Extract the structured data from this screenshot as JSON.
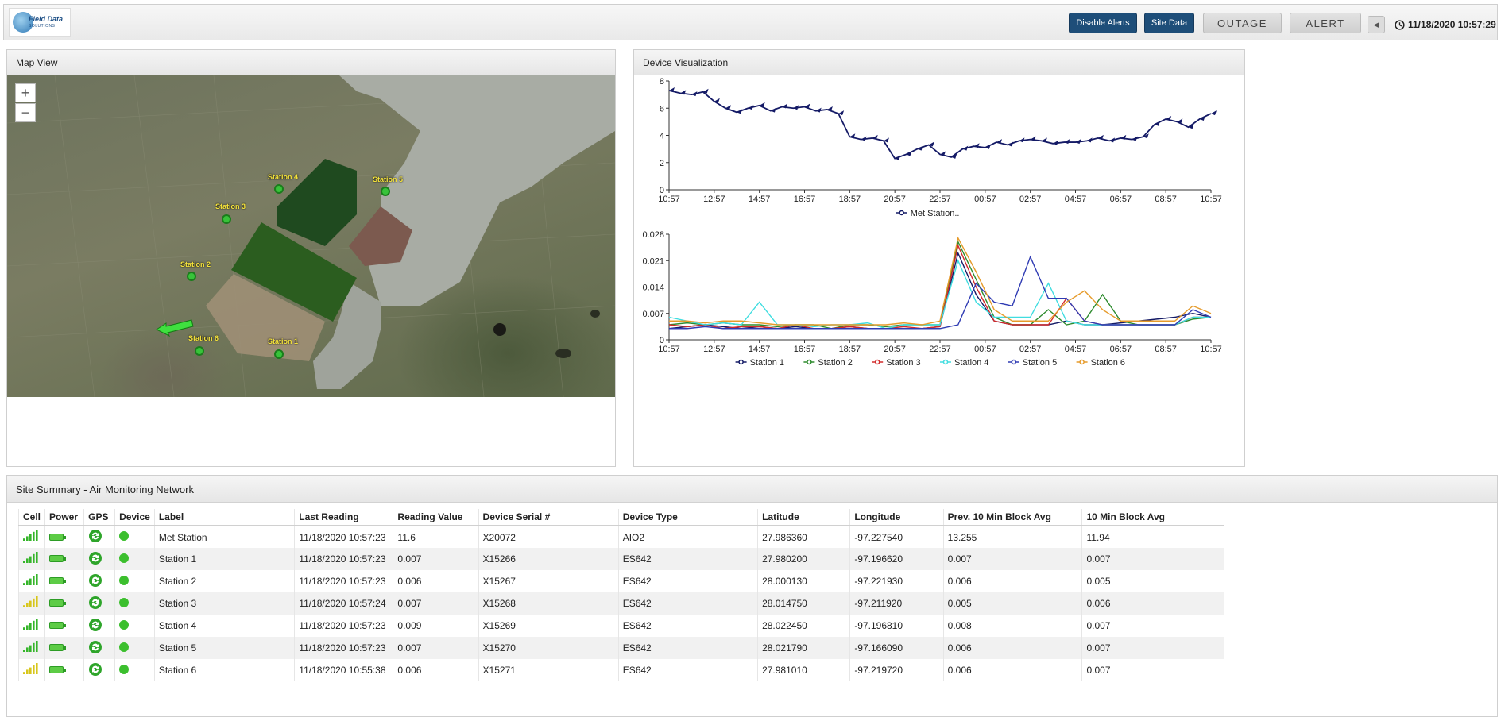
{
  "header": {
    "logo_text": "Field Data",
    "logo_sub": "SOLUTIONS",
    "disable_alerts": "Disable Alerts",
    "site_data": "Site Data",
    "outage": "OUTAGE",
    "alert": "ALERT",
    "timestamp": "11/18/2020 10:57:29"
  },
  "map_panel": {
    "title": "Map View",
    "zoom_in": "+",
    "zoom_out": "−",
    "stations": [
      {
        "label": "Station 4"
      },
      {
        "label": "Station 5"
      },
      {
        "label": "Station 3"
      },
      {
        "label": "Station 2"
      },
      {
        "label": "Station 6"
      },
      {
        "label": "Station 1"
      }
    ]
  },
  "viz_panel": {
    "title": "Device Visualization"
  },
  "chart_data": [
    {
      "type": "line",
      "title": "",
      "xlabel": "",
      "ylabel": "",
      "ylim": [
        0,
        8
      ],
      "yticks": [
        "0",
        "2",
        "4",
        "6",
        "8"
      ],
      "xticks": [
        "10:57",
        "12:57",
        "14:57",
        "16:57",
        "18:57",
        "20:57",
        "22:57",
        "00:57",
        "02:57",
        "04:57",
        "06:57",
        "08:57",
        "10:57"
      ],
      "legend": [
        "Met Station.."
      ],
      "series": [
        {
          "name": "Met Station..",
          "color": "#141a66",
          "values": [
            7.3,
            7.1,
            7.0,
            7.2,
            6.5,
            6.0,
            5.7,
            6.0,
            6.2,
            5.8,
            6.1,
            6.0,
            6.1,
            5.8,
            5.9,
            5.6,
            3.9,
            3.7,
            3.8,
            3.6,
            2.3,
            2.6,
            3.0,
            3.3,
            2.6,
            2.4,
            3.0,
            3.2,
            3.1,
            3.5,
            3.3,
            3.6,
            3.7,
            3.6,
            3.4,
            3.5,
            3.5,
            3.6,
            3.8,
            3.6,
            3.8,
            3.7,
            3.9,
            4.8,
            5.2,
            5.0,
            4.6,
            5.2,
            5.6
          ]
        }
      ]
    },
    {
      "type": "line",
      "title": "",
      "xlabel": "",
      "ylabel": "",
      "ylim": [
        0,
        0.028
      ],
      "yticks": [
        "0",
        "0.007",
        "0.014",
        "0.021",
        "0.028"
      ],
      "xticks": [
        "10:57",
        "12:57",
        "14:57",
        "16:57",
        "18:57",
        "20:57",
        "22:57",
        "00:57",
        "02:57",
        "04:57",
        "06:57",
        "08:57",
        "10:57"
      ],
      "legend": [
        "Station 1",
        "Station 2",
        "Station 3",
        "Station 4",
        "Station 5",
        "Station 6"
      ],
      "series": [
        {
          "name": "Station 1",
          "color": "#141a66",
          "values": [
            0.003,
            0.0035,
            0.004,
            0.0035,
            0.003,
            0.0035,
            0.003,
            0.0035,
            0.003,
            0.003,
            0.0035,
            0.003,
            0.003,
            0.003,
            0.003,
            0.0035,
            0.023,
            0.012,
            0.005,
            0.004,
            0.004,
            0.004,
            0.005,
            0.004,
            0.004,
            0.0045,
            0.005,
            0.0055,
            0.006,
            0.007,
            0.006
          ]
        },
        {
          "name": "Station 2",
          "color": "#2e8b2e",
          "values": [
            0.004,
            0.0045,
            0.004,
            0.0045,
            0.004,
            0.004,
            0.0035,
            0.004,
            0.004,
            0.003,
            0.004,
            0.004,
            0.0035,
            0.004,
            0.004,
            0.004,
            0.026,
            0.016,
            0.006,
            0.004,
            0.004,
            0.008,
            0.004,
            0.005,
            0.012,
            0.005,
            0.004,
            0.004,
            0.004,
            0.0055,
            0.006
          ]
        },
        {
          "name": "Station 3",
          "color": "#d22a2a",
          "values": [
            0.004,
            0.0035,
            0.004,
            0.003,
            0.0035,
            0.0035,
            0.003,
            0.004,
            0.003,
            0.003,
            0.0035,
            0.003,
            0.003,
            0.0035,
            0.003,
            0.0035,
            0.025,
            0.014,
            0.005,
            0.004,
            0.004,
            0.004,
            0.011,
            0.005,
            0.004,
            0.004,
            0.004,
            0.004,
            0.004,
            0.006,
            0.006
          ]
        },
        {
          "name": "Station 4",
          "color": "#40dde0",
          "values": [
            0.006,
            0.005,
            0.004,
            0.0045,
            0.004,
            0.01,
            0.004,
            0.004,
            0.0035,
            0.004,
            0.004,
            0.0045,
            0.003,
            0.004,
            0.004,
            0.004,
            0.021,
            0.01,
            0.006,
            0.006,
            0.006,
            0.015,
            0.005,
            0.004,
            0.004,
            0.004,
            0.004,
            0.004,
            0.004,
            0.006,
            0.006
          ]
        },
        {
          "name": "Station 5",
          "color": "#2f3bb3",
          "values": [
            0.003,
            0.003,
            0.0035,
            0.003,
            0.003,
            0.003,
            0.003,
            0.003,
            0.003,
            0.003,
            0.003,
            0.003,
            0.003,
            0.003,
            0.003,
            0.003,
            0.004,
            0.015,
            0.01,
            0.009,
            0.022,
            0.011,
            0.011,
            0.005,
            0.004,
            0.004,
            0.004,
            0.004,
            0.004,
            0.008,
            0.006
          ]
        },
        {
          "name": "Station 6",
          "color": "#e69b2b",
          "values": [
            0.005,
            0.005,
            0.0045,
            0.005,
            0.005,
            0.0045,
            0.004,
            0.004,
            0.004,
            0.004,
            0.004,
            0.004,
            0.004,
            0.0045,
            0.004,
            0.005,
            0.027,
            0.018,
            0.008,
            0.005,
            0.005,
            0.005,
            0.01,
            0.013,
            0.008,
            0.005,
            0.005,
            0.005,
            0.005,
            0.009,
            0.007
          ]
        }
      ]
    }
  ],
  "summary_panel": {
    "title": "Site Summary - Air Monitoring Network",
    "columns": [
      "Cell",
      "Power",
      "GPS",
      "Device",
      "Label",
      "Last Reading",
      "Reading Value",
      "Device Serial #",
      "Device Type",
      "Latitude",
      "Longitude",
      "Prev. 10 Min Block Avg",
      "10 Min Block Avg"
    ],
    "rows": [
      {
        "cell": "green",
        "label": "Met Station",
        "last_reading": "11/18/2020 10:57:23",
        "value": "11.6",
        "serial": "X20072",
        "type": "AIO2",
        "lat": "27.986360",
        "lon": "-97.227540",
        "prev_avg": "13.255",
        "avg": "11.94"
      },
      {
        "cell": "green",
        "label": "Station 1",
        "last_reading": "11/18/2020 10:57:23",
        "value": "0.007",
        "serial": "X15266",
        "type": "ES642",
        "lat": "27.980200",
        "lon": "-97.196620",
        "prev_avg": "0.007",
        "avg": "0.007"
      },
      {
        "cell": "green",
        "label": "Station 2",
        "last_reading": "11/18/2020 10:57:23",
        "value": "0.006",
        "serial": "X15267",
        "type": "ES642",
        "lat": "28.000130",
        "lon": "-97.221930",
        "prev_avg": "0.006",
        "avg": "0.005"
      },
      {
        "cell": "yellow",
        "label": "Station 3",
        "last_reading": "11/18/2020 10:57:24",
        "value": "0.007",
        "serial": "X15268",
        "type": "ES642",
        "lat": "28.014750",
        "lon": "-97.211920",
        "prev_avg": "0.005",
        "avg": "0.006"
      },
      {
        "cell": "green",
        "label": "Station 4",
        "last_reading": "11/18/2020 10:57:23",
        "value": "0.009",
        "serial": "X15269",
        "type": "ES642",
        "lat": "28.022450",
        "lon": "-97.196810",
        "prev_avg": "0.008",
        "avg": "0.007"
      },
      {
        "cell": "green",
        "label": "Station 5",
        "last_reading": "11/18/2020 10:57:23",
        "value": "0.007",
        "serial": "X15270",
        "type": "ES642",
        "lat": "28.021790",
        "lon": "-97.166090",
        "prev_avg": "0.006",
        "avg": "0.007"
      },
      {
        "cell": "yellow",
        "label": "Station 6",
        "last_reading": "11/18/2020 10:55:38",
        "value": "0.006",
        "serial": "X15271",
        "type": "ES642",
        "lat": "27.981010",
        "lon": "-97.219720",
        "prev_avg": "0.006",
        "avg": "0.007"
      }
    ]
  }
}
